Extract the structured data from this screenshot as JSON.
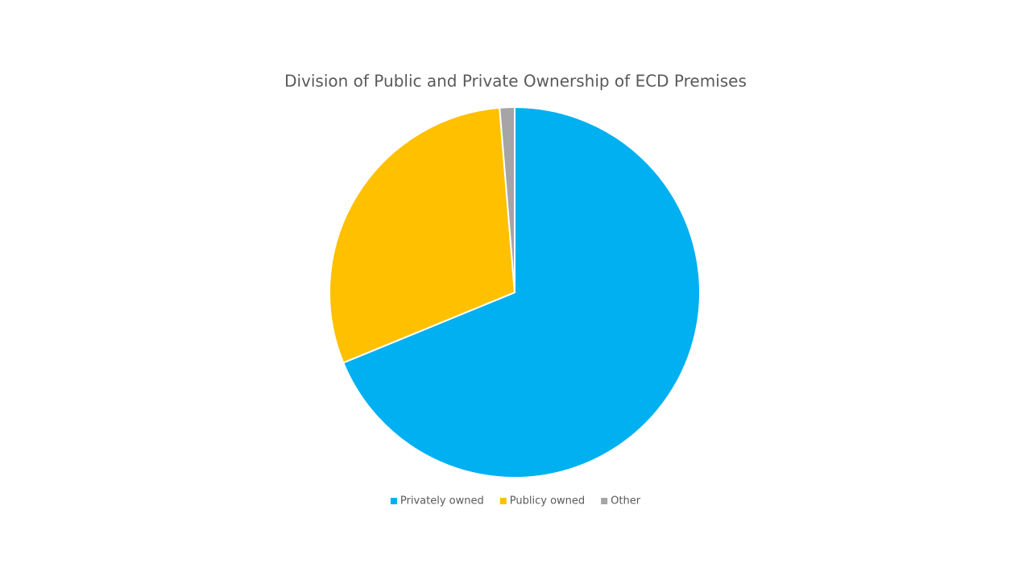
{
  "chart_data": {
    "type": "pie",
    "title": "Division of Public and Private Ownership of ECD Premises",
    "categories": [
      "Privately owned",
      "Publicy owned",
      "Other"
    ],
    "values": [
      68.8,
      29.9,
      1.3
    ],
    "colors": [
      "#00b0f0",
      "#ffc000",
      "#a5a5a5"
    ],
    "legend": "bottom"
  }
}
